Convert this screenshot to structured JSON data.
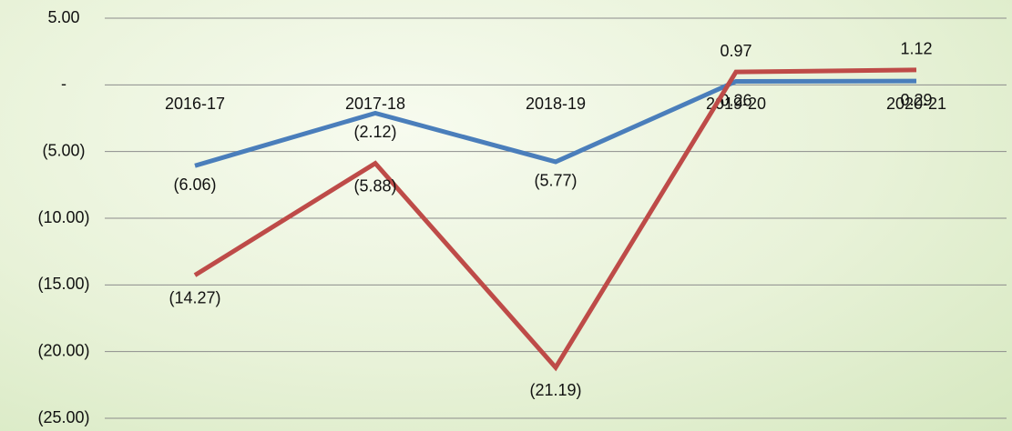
{
  "chart_data": {
    "type": "line",
    "categories": [
      "2016-17",
      "2017-18",
      "2018-19",
      "2019-20",
      "2020-21"
    ],
    "series": [
      {
        "color": "#4a7ebb",
        "values": [
          -6.06,
          -2.12,
          -5.77,
          0.26,
          0.29
        ],
        "value_labels": [
          "(6.06)",
          "(2.12)",
          "(5.77)",
          "0.26",
          "0.29"
        ]
      },
      {
        "color": "#be4b48",
        "values": [
          -14.27,
          -5.88,
          -21.19,
          0.97,
          1.12
        ],
        "value_labels": [
          "(14.27)",
          "(5.88)",
          "(21.19)",
          "0.97",
          "1.12"
        ]
      }
    ],
    "ylim": [
      -25,
      5
    ],
    "yticks": [
      {
        "value": 5,
        "label": "5.00"
      },
      {
        "value": 0,
        "label": "-"
      },
      {
        "value": -5,
        "label": "(5.00)"
      },
      {
        "value": -10,
        "label": "(10.00)"
      },
      {
        "value": -15,
        "label": "(15.00)"
      },
      {
        "value": -20,
        "label": "(20.00)"
      },
      {
        "value": -25,
        "label": "(25.00)"
      }
    ],
    "grid": true
  }
}
